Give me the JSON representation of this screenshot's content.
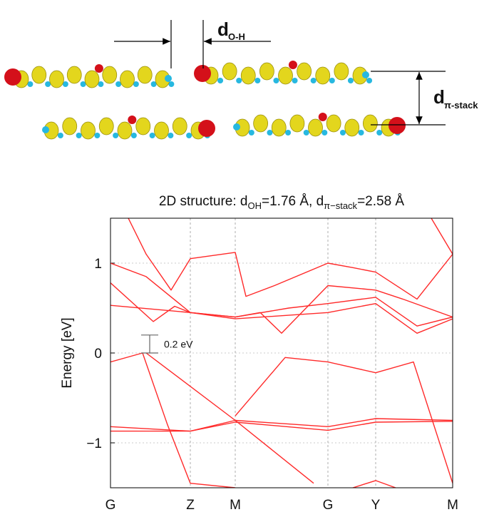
{
  "structure": {
    "d_oh": {
      "symbol": "d",
      "subscript": "O-H"
    },
    "d_stack": {
      "symbol": "d",
      "subscript": "π-stack"
    }
  },
  "chart_data": {
    "type": "line",
    "title_parts": [
      "2D structure: d",
      "OH",
      "=1.76 Å, d",
      "π−stack",
      "=2.58 Å"
    ],
    "y_label": "Energy [eV]",
    "annotation": "0.2 eV",
    "color": "#ff2a2a",
    "grid": true,
    "xlim": [
      0,
      4.8
    ],
    "ylim": [
      -1.5,
      1.5
    ],
    "xticks": [
      {
        "value": 0,
        "label": "G"
      },
      {
        "value": 1.12,
        "label": "Z"
      },
      {
        "value": 1.75,
        "label": "M"
      },
      {
        "value": 3.05,
        "label": "G"
      },
      {
        "value": 3.72,
        "label": "Y"
      },
      {
        "value": 4.8,
        "label": "M"
      }
    ],
    "yticks": [
      {
        "value": -1,
        "label": "−1"
      },
      0,
      1
    ],
    "series": [
      {
        "x": [
          0.25,
          0.5,
          0.85,
          1.12,
          1.75,
          1.9,
          2.3,
          3.05,
          3.4,
          3.72,
          4.3,
          4.8
        ],
        "values": [
          1.5,
          1.1,
          0.7,
          1.05,
          1.12,
          0.63,
          0.75,
          1.0,
          0.95,
          0.9,
          0.6,
          1.1
        ]
      },
      {
        "x": [
          4.5,
          4.8
        ],
        "values": [
          1.5,
          1.1
        ]
      },
      {
        "x": [
          0,
          0.5,
          1.12,
          1.75,
          2.5,
          3.05,
          3.72,
          4.3,
          4.8
        ],
        "values": [
          1.0,
          0.85,
          0.45,
          0.4,
          0.5,
          0.55,
          0.62,
          0.3,
          0.4
        ]
      },
      {
        "x": [
          0,
          0.6,
          0.9,
          1.12,
          1.75,
          2.1,
          2.4,
          3.05,
          3.72,
          4.1,
          4.8
        ],
        "values": [
          0.78,
          0.35,
          0.52,
          0.45,
          0.4,
          0.45,
          0.22,
          0.75,
          0.7,
          0.6,
          0.4
        ]
      },
      {
        "x": [
          0,
          1.12,
          1.75,
          3.05,
          3.72,
          4.3,
          4.8
        ],
        "values": [
          0.53,
          0.45,
          0.38,
          0.45,
          0.55,
          0.22,
          0.38
        ]
      },
      {
        "x": [
          0,
          0.45,
          0.8,
          1.12
        ],
        "values": [
          -0.1,
          0.0,
          -0.8,
          -1.45
        ]
      },
      {
        "x": [
          1.75,
          2.45,
          3.05,
          3.72,
          4.25,
          4.8
        ],
        "values": [
          -0.7,
          -0.05,
          -0.1,
          -0.22,
          -0.1,
          -1.45
        ]
      },
      {
        "x": [
          0.5,
          1.75,
          2.85
        ],
        "values": [
          0.0,
          -0.75,
          -1.45
        ]
      },
      {
        "x": [
          0,
          1.12,
          1.75,
          3.05,
          3.72,
          4.8
        ],
        "values": [
          -0.82,
          -0.87,
          -0.75,
          -0.82,
          -0.73,
          -0.75
        ]
      },
      {
        "x": [
          0,
          1.12,
          1.75,
          3.05,
          3.72,
          4.8
        ],
        "values": [
          -0.87,
          -0.87,
          -0.77,
          -0.86,
          -0.77,
          -0.76
        ]
      },
      {
        "x": [
          1.12,
          1.75
        ],
        "values": [
          -1.45,
          -1.5
        ]
      },
      {
        "x": [
          3.4,
          3.72,
          4.0
        ],
        "values": [
          -1.5,
          -1.42,
          -1.5
        ]
      }
    ]
  }
}
